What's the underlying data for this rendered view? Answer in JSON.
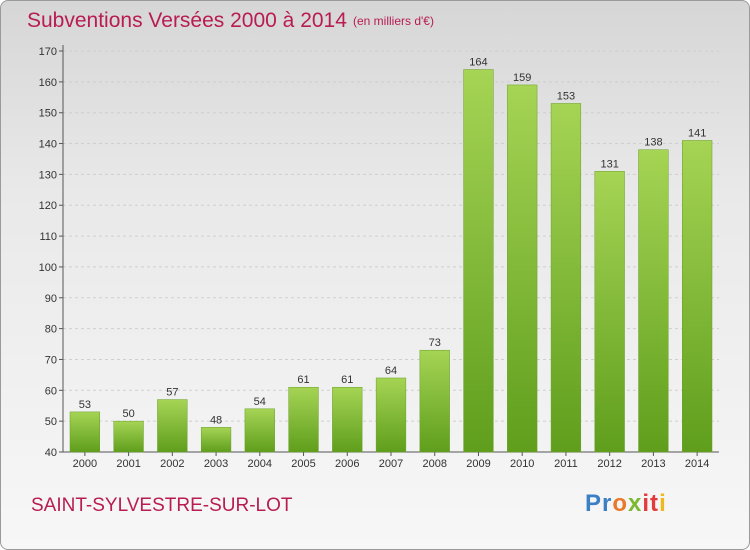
{
  "chart_data": {
    "type": "bar",
    "title": "Subventions Versées 2000 à 2014",
    "subtitle": "(en milliers d'€)",
    "categories": [
      "2000",
      "2001",
      "2002",
      "2003",
      "2004",
      "2005",
      "2006",
      "2007",
      "2008",
      "2009",
      "2010",
      "2011",
      "2012",
      "2013",
      "2014"
    ],
    "values": [
      53,
      50,
      57,
      48,
      54,
      61,
      61,
      64,
      73,
      164,
      159,
      153,
      131,
      138,
      141
    ],
    "ylim": [
      40,
      170
    ],
    "yticks": [
      40,
      50,
      60,
      70,
      80,
      90,
      100,
      110,
      120,
      130,
      140,
      150,
      160,
      170
    ],
    "grid": true,
    "bar_color": "#7fba2e",
    "bar_color_light": "#a6d455",
    "title_color": "#b81c52"
  },
  "commune": "SAINT-SYLVESTRE-SUR-LOT",
  "logo": {
    "parts": [
      "Pr",
      "o",
      "x",
      "it",
      "i"
    ]
  }
}
